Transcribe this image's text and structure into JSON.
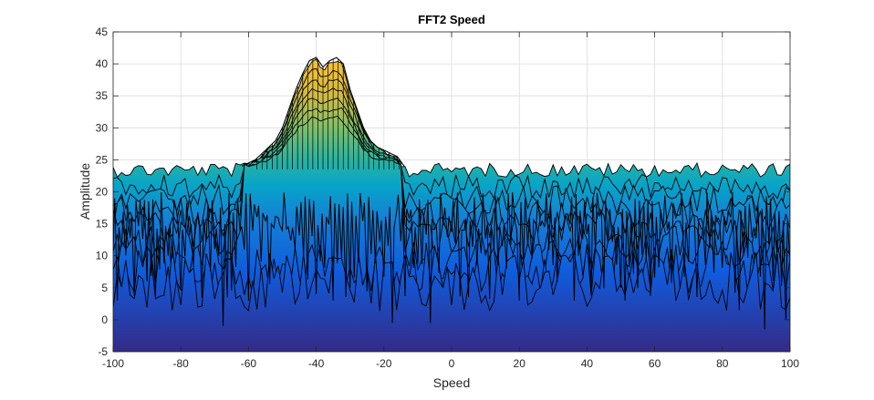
{
  "chart_data": {
    "type": "area",
    "title": "FFT2 Speed",
    "xlabel": "Speed",
    "ylabel": "Amplitude",
    "xlim": [
      -100,
      100
    ],
    "ylim": [
      -5,
      45
    ],
    "xticks": [
      -100,
      -80,
      -60,
      -40,
      -20,
      0,
      20,
      40,
      60,
      80,
      100
    ],
    "yticks": [
      -5,
      0,
      5,
      10,
      15,
      20,
      25,
      30,
      35,
      40,
      45
    ],
    "grid": true,
    "colormap": "parula",
    "colors": {
      "low": "#3b3fd9",
      "mid": "#2ab0b8",
      "high": "#f5c034",
      "edge": "#000000"
    },
    "noise_floor": {
      "min": 9,
      "max": 24.5
    },
    "peak": {
      "x": [
        -62,
        -58,
        -55,
        -52,
        -50,
        -48,
        -46,
        -44,
        -42,
        -40,
        -38,
        -36,
        -34,
        -32,
        -30,
        -28,
        -26,
        -24,
        -22,
        -20,
        -18,
        -16,
        -14
      ],
      "y": [
        24,
        25,
        26.5,
        28,
        30,
        33,
        36,
        38.5,
        40.5,
        41,
        39.5,
        40.5,
        41,
        40,
        36,
        33,
        30,
        28,
        27,
        26.5,
        26,
        25.5,
        24
      ]
    },
    "dips": {
      "x": [
        -99,
        -90,
        -67,
        -60,
        -40,
        -35,
        -30,
        -17,
        -6,
        20,
        50,
        85,
        92,
        99
      ],
      "y": [
        3,
        6,
        -1,
        3,
        4,
        3,
        5,
        -0.5,
        -0.5,
        3,
        5,
        1.5,
        -1.5,
        0
      ]
    }
  }
}
